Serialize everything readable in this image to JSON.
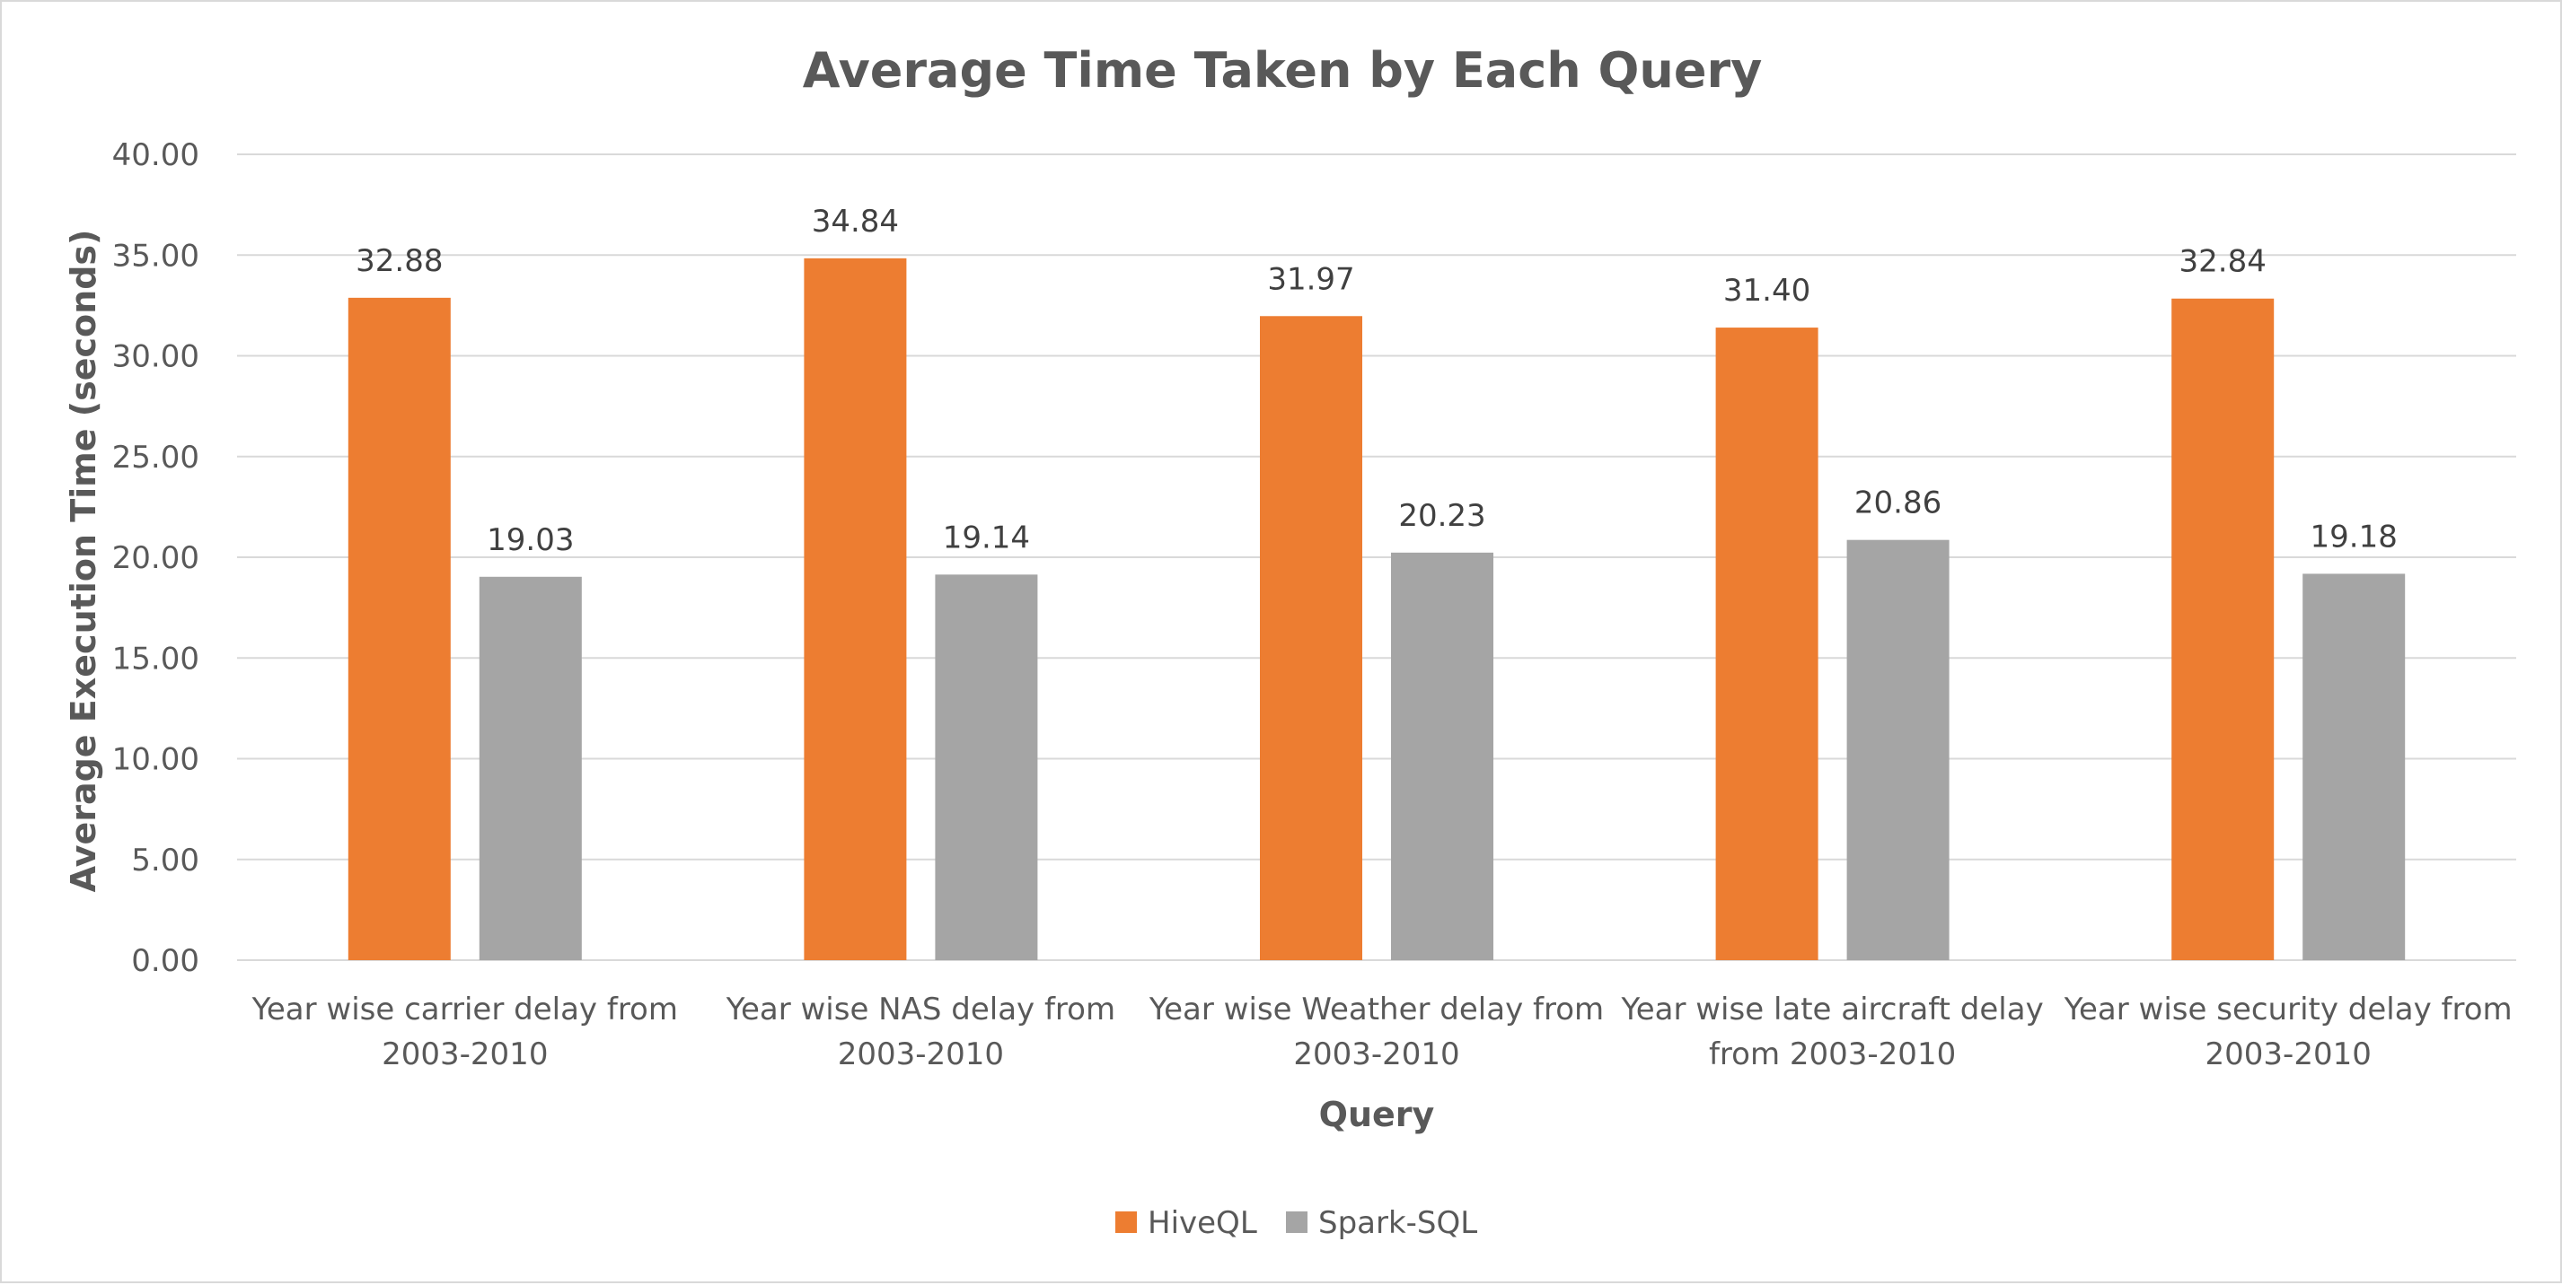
{
  "chart_data": {
    "type": "bar",
    "title": "Average Time Taken by Each Query",
    "xlabel": "Query",
    "ylabel": "Average Execution Time (seconds)",
    "ylim": [
      0,
      40
    ],
    "yticks": [
      "0.00",
      "5.00",
      "10.00",
      "15.00",
      "20.00",
      "25.00",
      "30.00",
      "35.00",
      "40.00"
    ],
    "categories": [
      [
        "Year wise carrier delay from",
        "2003-2010"
      ],
      [
        "Year wise NAS delay from",
        "2003-2010"
      ],
      [
        "Year wise Weather delay from",
        "2003-2010"
      ],
      [
        "Year wise late aircraft delay",
        "from 2003-2010"
      ],
      [
        "Year wise security delay from",
        "2003-2010"
      ]
    ],
    "series": [
      {
        "name": "HiveQL",
        "color": "#ed7d31",
        "values": [
          32.88,
          34.84,
          31.97,
          31.4,
          32.84
        ],
        "labels": [
          "32.88",
          "34.84",
          "31.97",
          "31.40",
          "32.84"
        ]
      },
      {
        "name": "Spark-SQL",
        "color": "#a5a5a5",
        "values": [
          19.03,
          19.14,
          20.23,
          20.86,
          19.18
        ],
        "labels": [
          "19.03",
          "19.14",
          "20.23",
          "20.86",
          "19.18"
        ]
      }
    ],
    "grid": true,
    "legend": "bottom-center"
  }
}
